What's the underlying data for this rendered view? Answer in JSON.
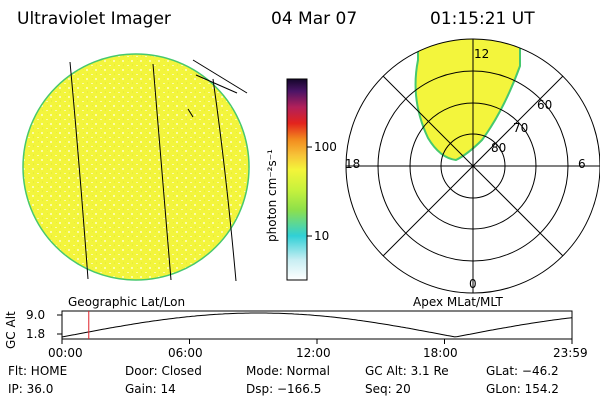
{
  "header": {
    "instrument": "Ultraviolet Imager",
    "date": "04 Mar 07",
    "time": "01:15:21 UT"
  },
  "colorbar": {
    "label": "photon cm⁻²s⁻¹",
    "ticks": [
      "100",
      "10"
    ]
  },
  "geo_panel": {
    "label": "Geographic Lat/Lon"
  },
  "polar_panel": {
    "label": "Apex MLat/MLT",
    "mlt_labels": {
      "top": "12",
      "left": "18",
      "right": "6",
      "bottom": "0"
    },
    "lat_labels": [
      "60",
      "70",
      "80"
    ]
  },
  "orbit_plot": {
    "ylabel": "GC Alt",
    "yticks": [
      "9.0",
      "1.8"
    ],
    "xticks": [
      "00:00",
      "06:00",
      "12:00",
      "18:00",
      "23:59"
    ],
    "current_time_hours": 1.26
  },
  "status": {
    "row1": {
      "flt": "Flt: HOME",
      "door": "Door: Closed",
      "mode": "Mode: Normal",
      "gcalt": "GC Alt: 3.1 Re",
      "glat": "GLat: −46.2"
    },
    "row2": {
      "ip": "IP: 36.0",
      "gain": "Gain: 14",
      "dsp": "Dsp: −166.5",
      "seq": "Seq: 20",
      "glon": "GLon: 154.2"
    }
  },
  "colors": {
    "disk_fill": "#f3f53c",
    "disk_edge": "#46c86e",
    "marker": "#e0202a"
  }
}
